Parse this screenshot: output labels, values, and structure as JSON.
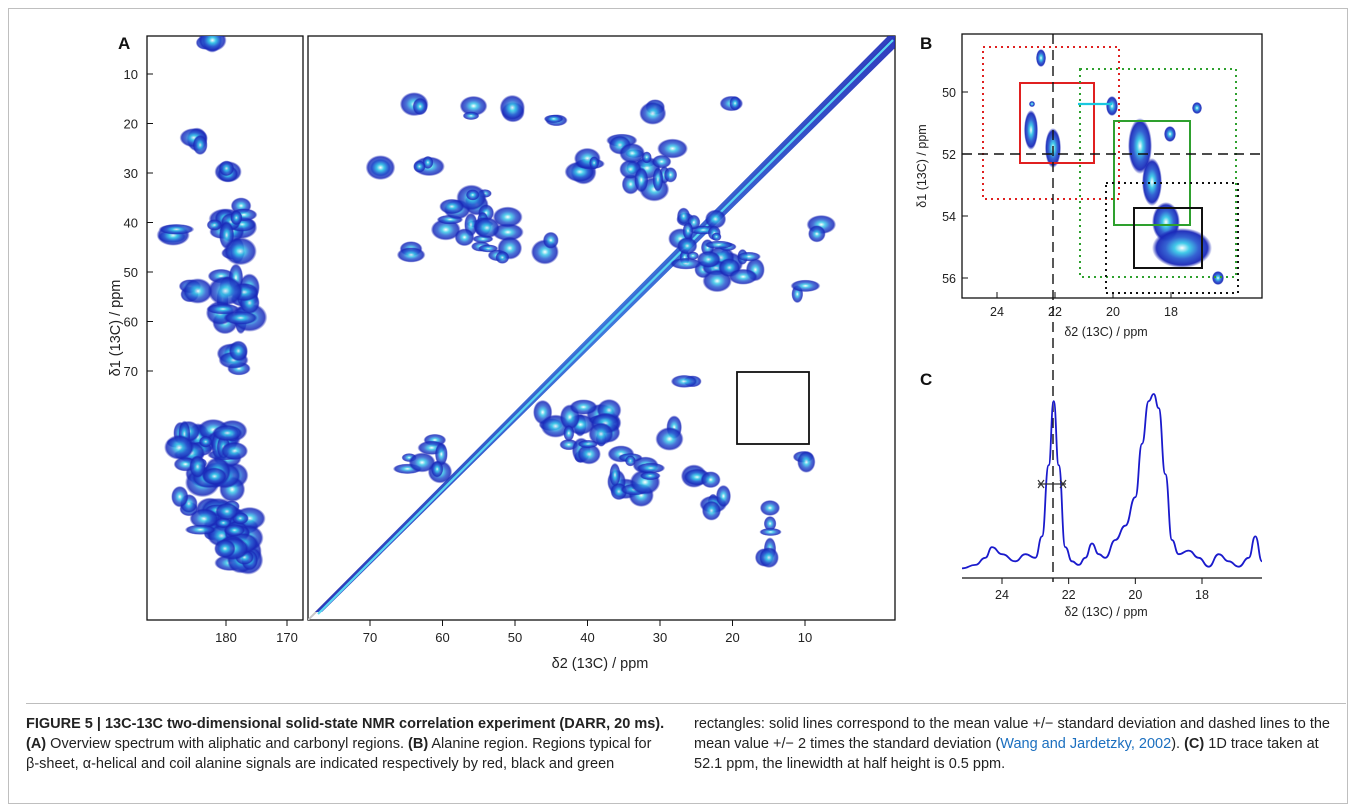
{
  "figure": {
    "panel_a_label": "A",
    "panel_b_label": "B",
    "panel_c_label": "C"
  },
  "panel_a": {
    "y_axis_label": "δ1 (13C) / ppm",
    "x_axis_label": "δ2 (13C) / ppm",
    "y_ticks": [
      "10",
      "20",
      "30",
      "40",
      "50",
      "60",
      "70"
    ],
    "carbonyl_x_ticks": [
      "180",
      "170"
    ],
    "aliphatic_x_ticks": [
      "70",
      "60",
      "50",
      "40",
      "30",
      "20",
      "10"
    ]
  },
  "panel_b": {
    "y_axis_label": "δ1 (13C) / ppm",
    "x_axis_label": "δ2 (13C) / ppm",
    "y_ticks": [
      "50",
      "52",
      "54",
      "56"
    ],
    "x_ticks": [
      "24",
      "22",
      "20",
      "18"
    ],
    "colors": {
      "beta_sheet": "#e02020",
      "alpha_helix": "#111111",
      "coil": "#2ea02e",
      "crosshair": "#111111",
      "cyan_link": "#19c8e0"
    }
  },
  "panel_c": {
    "x_axis_label": "δ2 (13C) / ppm",
    "x_ticks": [
      "24",
      "22",
      "20",
      "18"
    ],
    "trace_color": "#1a1acc"
  },
  "chart_data": {
    "type": "line",
    "title": "",
    "xlabel": "δ2 (13C) / ppm",
    "ylabel": "",
    "xlim": [
      25.2,
      16.2
    ],
    "x": [
      25.2,
      24.8,
      24.5,
      24.3,
      24.0,
      23.6,
      23.3,
      23.0,
      22.8,
      22.6,
      22.45,
      22.3,
      22.1,
      21.9,
      21.7,
      21.5,
      21.3,
      21.1,
      20.9,
      20.6,
      20.3,
      20.0,
      19.8,
      19.6,
      19.45,
      19.3,
      19.1,
      18.9,
      18.7,
      18.4,
      18.1,
      17.8,
      17.5,
      17.2,
      16.9,
      16.6,
      16.4,
      16.2
    ],
    "values": [
      0.02,
      0.04,
      0.08,
      0.14,
      0.1,
      0.06,
      0.1,
      0.08,
      0.2,
      0.6,
      0.96,
      0.6,
      0.14,
      0.06,
      0.04,
      0.08,
      0.16,
      0.1,
      0.08,
      0.18,
      0.26,
      0.42,
      0.72,
      0.96,
      1.0,
      0.92,
      0.55,
      0.18,
      0.1,
      0.12,
      0.08,
      0.03,
      0.1,
      0.06,
      0.03,
      0.08,
      0.2,
      0.06
    ],
    "grid": false
  },
  "caption": {
    "title": "FIGURE 5 | 13C-13C two-dimensional solid-state NMR correlation experiment (DARR, 20 ms).",
    "label_a": "(A)",
    "text_a": "Overview spectrum with aliphatic and carbonyl regions.",
    "label_b": "(B)",
    "text_b": "Alanine region. Regions typical for β-sheet, α-helical and coil alanine signals are indicated respectively by red, black and green",
    "text_b_cont": "rectangles: solid lines correspond to the mean value +/− standard deviation and dashed lines to the mean value +/− 2 times the standard deviation",
    "citation": "Wang and Jardetzky, 2002",
    "after_citation": ").",
    "label_c": "(C)",
    "text_c": "1D trace taken at 52.1 ppm, the linewidth at half height is 0.5 ppm."
  }
}
